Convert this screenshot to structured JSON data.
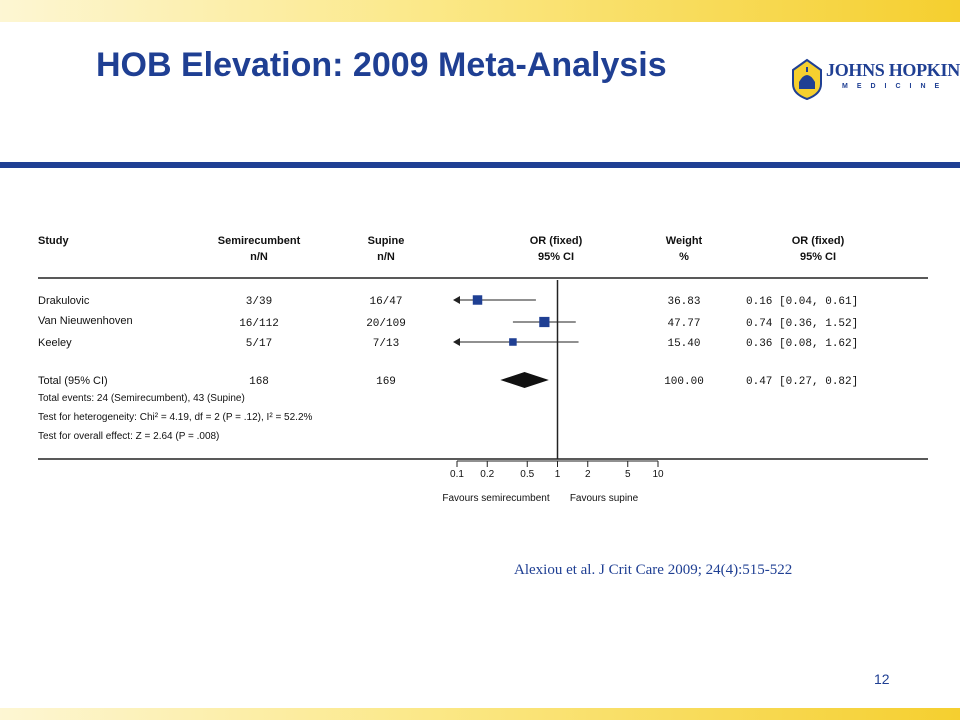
{
  "slide": {
    "title": "HOB Elevation: 2009 Meta-Analysis",
    "citation": "Alexiou et al. J Crit Care 2009; 24(4):515-522",
    "page_number": "12"
  },
  "logo": {
    "name": "JOHNS HOPKINS",
    "subtitle": "MEDICINE",
    "icon": "dome-shield-icon"
  },
  "colors": {
    "title_blue": "#1f3f93",
    "band_gold": "#f5cf2f",
    "marker_blue": "#1f3f93"
  },
  "chart_data": {
    "type": "forest",
    "headers": {
      "study": "Study",
      "semi": "Semirecumbent",
      "semi_sub": "n/N",
      "supine": "Supine",
      "supine_sub": "n/N",
      "or": "OR (fixed)",
      "or_sub": "95% CI",
      "weight": "Weight",
      "weight_sub": "%",
      "or_text": "OR (fixed)",
      "or_text_sub": "95% CI"
    },
    "studies": [
      {
        "name": "Drakulovic",
        "semi": "3/39",
        "supine": "16/47",
        "weight": "36.83",
        "or_text": "0.16 [0.04, 0.61]",
        "or": 0.16,
        "lo": 0.04,
        "hi": 0.61,
        "w": 36.83
      },
      {
        "name": "Van Nieuwenhoven",
        "semi": "16/112",
        "supine": "20/109",
        "weight": "47.77",
        "or_text": "0.74 [0.36, 1.52]",
        "or": 0.74,
        "lo": 0.36,
        "hi": 1.52,
        "w": 47.77
      },
      {
        "name": "Keeley",
        "semi": "5/17",
        "supine": "7/13",
        "weight": "15.40",
        "or_text": "0.36 [0.08, 1.62]",
        "or": 0.36,
        "lo": 0.08,
        "hi": 1.62,
        "w": 15.4
      }
    ],
    "total": {
      "name": "Total (95% CI)",
      "semi": "168",
      "supine": "169",
      "weight": "100.00",
      "or_text": "0.47 [0.27, 0.82]",
      "or": 0.47,
      "lo": 0.27,
      "hi": 0.82
    },
    "notes": [
      "Total events: 24 (Semirecumbent), 43 (Supine)",
      "Test for heterogeneity: Chi² = 4.19, df = 2 (P = .12), I² = 52.2%",
      "Test for overall effect: Z = 2.64 (P = .008)"
    ],
    "x_scale": "log",
    "xlim": [
      0.1,
      10
    ],
    "ticks": [
      0.1,
      0.2,
      0.5,
      1,
      2,
      5,
      10
    ],
    "tick_labels": [
      "0.1",
      "0.2",
      "0.5",
      "1",
      "2",
      "5",
      "10"
    ],
    "xlabel_left": "Favours semirecumbent",
    "xlabel_right": "Favours supine",
    "null_line": 1
  }
}
